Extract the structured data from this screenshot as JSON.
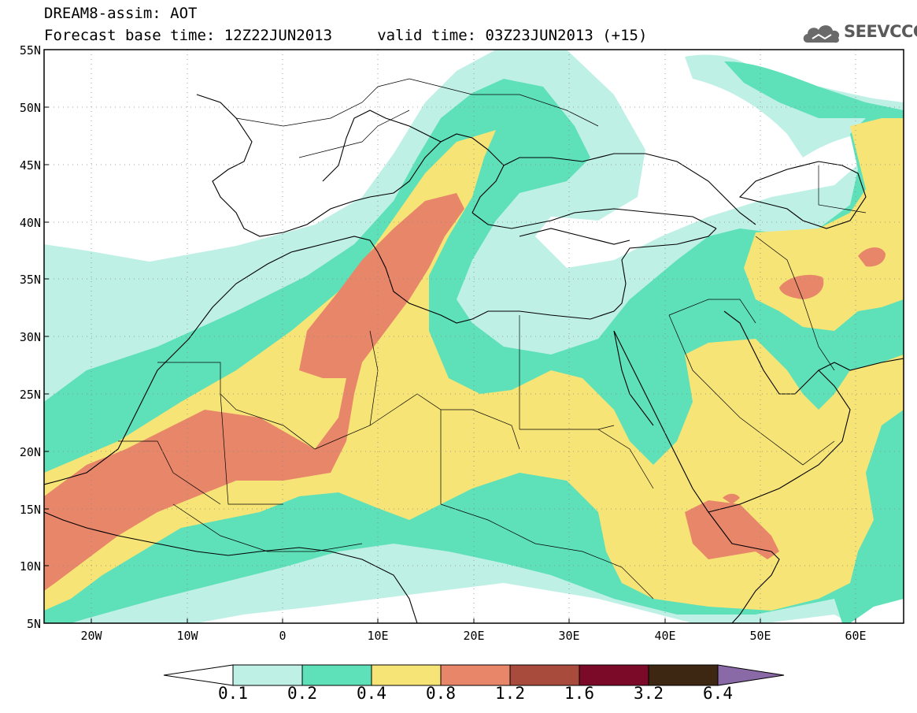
{
  "title": {
    "line1": "DREAM8-assim: AOT",
    "line2": "Forecast base time: 12Z22JUN2013     valid time: 03Z23JUN2013 (+15)"
  },
  "logo": {
    "text": "SEEVCCC",
    "icon": "cloud-icon",
    "color": "#5a5a5a"
  },
  "map": {
    "extent": {
      "lon": [
        -25,
        65
      ],
      "lat": [
        5,
        55
      ]
    },
    "lat_ticks": [
      "55N",
      "50N",
      "45N",
      "40N",
      "35N",
      "30N",
      "25N",
      "20N",
      "15N",
      "10N",
      "5N"
    ],
    "lon_ticks": [
      "20W",
      "10W",
      "0",
      "10E",
      "20E",
      "30E",
      "40E",
      "50E",
      "60E"
    ],
    "grid": "dotted"
  },
  "colorbar": {
    "labels": [
      "0.1",
      "0.2",
      "0.4",
      "0.8",
      "1.2",
      "1.6",
      "3.2",
      "6.4"
    ],
    "colors": {
      "lt01": "#ffffff",
      "c01_02": "#bff0e6",
      "c02_04": "#5ee0b8",
      "c04_08": "#f7e477",
      "c08_12": "#e8866a",
      "c12_16": "#a84a3c",
      "c16_32": "#7a0a28",
      "c32_64": "#3d2612",
      "gt64": "#8a6aa6"
    }
  }
}
